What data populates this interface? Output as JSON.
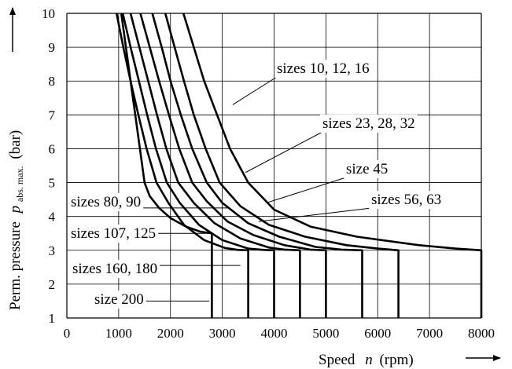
{
  "chart_data": {
    "type": "line",
    "xlabel": {
      "prefix": "Speed",
      "symbol": "n",
      "unit": "(rpm)"
    },
    "ylabel": {
      "prefix": "Perm. pressure",
      "symbol": "p",
      "subscript": "abs. max.",
      "unit": "(bar)"
    },
    "xlim": [
      0,
      8000
    ],
    "ylim": [
      1,
      10
    ],
    "x_ticks": [
      0,
      1000,
      2000,
      3000,
      4000,
      5000,
      6000,
      7000,
      8000
    ],
    "y_ticks": [
      1,
      2,
      3,
      4,
      5,
      6,
      7,
      8,
      9,
      10
    ],
    "grid": true,
    "series": [
      {
        "name": "sizes 10, 12, 16",
        "points": [
          [
            2250,
            10
          ],
          [
            2450,
            9
          ],
          [
            2650,
            8
          ],
          [
            2900,
            7
          ],
          [
            3150,
            6
          ],
          [
            3500,
            5
          ],
          [
            4000,
            4.2
          ],
          [
            4700,
            3.7
          ],
          [
            5600,
            3.4
          ],
          [
            6800,
            3.15
          ],
          [
            7500,
            3.05
          ],
          [
            8000,
            3
          ],
          [
            8000,
            1
          ]
        ]
      },
      {
        "name": "sizes 23, 28, 32",
        "points": [
          [
            1900,
            10
          ],
          [
            2080,
            9
          ],
          [
            2260,
            8
          ],
          [
            2450,
            7
          ],
          [
            2680,
            6
          ],
          [
            2950,
            5
          ],
          [
            3350,
            4.3
          ],
          [
            3900,
            3.75
          ],
          [
            4600,
            3.4
          ],
          [
            5400,
            3.15
          ],
          [
            6000,
            3.05
          ],
          [
            6400,
            3
          ],
          [
            6400,
            1
          ]
        ]
      },
      {
        "name": "size 45",
        "points": [
          [
            1650,
            10
          ],
          [
            1830,
            9
          ],
          [
            2000,
            8
          ],
          [
            2200,
            7
          ],
          [
            2420,
            6
          ],
          [
            2700,
            5
          ],
          [
            3000,
            4.4
          ],
          [
            3500,
            3.8
          ],
          [
            4100,
            3.4
          ],
          [
            4800,
            3.1
          ],
          [
            5300,
            3.02
          ],
          [
            5700,
            3
          ],
          [
            5700,
            1
          ]
        ]
      },
      {
        "name": "sizes 56, 63",
        "points": [
          [
            1420,
            10
          ],
          [
            1600,
            9
          ],
          [
            1780,
            8
          ],
          [
            1970,
            7
          ],
          [
            2170,
            6
          ],
          [
            2420,
            5
          ],
          [
            2700,
            4.45
          ],
          [
            3100,
            3.85
          ],
          [
            3600,
            3.45
          ],
          [
            4200,
            3.15
          ],
          [
            4700,
            3.02
          ],
          [
            5000,
            3
          ],
          [
            5000,
            1
          ]
        ]
      },
      {
        "name": "sizes 80, 90",
        "points": [
          [
            1230,
            10
          ],
          [
            1400,
            9
          ],
          [
            1570,
            8
          ],
          [
            1740,
            7
          ],
          [
            1920,
            6
          ],
          [
            2150,
            5
          ],
          [
            2450,
            4.4
          ],
          [
            2850,
            3.8
          ],
          [
            3350,
            3.35
          ],
          [
            3900,
            3.08
          ],
          [
            4200,
            3.02
          ],
          [
            4500,
            3
          ],
          [
            4500,
            1
          ]
        ]
      },
      {
        "name": "sizes 107, 125",
        "points": [
          [
            1080,
            10
          ],
          [
            1230,
            9
          ],
          [
            1390,
            8
          ],
          [
            1550,
            7
          ],
          [
            1720,
            6
          ],
          [
            1930,
            5
          ],
          [
            2180,
            4.4
          ],
          [
            2550,
            3.75
          ],
          [
            3000,
            3.3
          ],
          [
            3500,
            3.05
          ],
          [
            3800,
            3.01
          ],
          [
            4000,
            3
          ],
          [
            4000,
            1
          ]
        ]
      },
      {
        "name": "sizes 160, 180",
        "points": [
          [
            960,
            10
          ],
          [
            1090,
            9
          ],
          [
            1230,
            8
          ],
          [
            1380,
            7
          ],
          [
            1540,
            6
          ],
          [
            1730,
            5
          ],
          [
            1960,
            4.4
          ],
          [
            2260,
            3.75
          ],
          [
            2650,
            3.3
          ],
          [
            3050,
            3.07
          ],
          [
            3300,
            3.01
          ],
          [
            3500,
            3
          ],
          [
            3500,
            1
          ]
        ]
      },
      {
        "name": "size 200",
        "points": [
          [
            1050,
            10
          ],
          [
            1140,
            9
          ],
          [
            1230,
            8
          ],
          [
            1320,
            7
          ],
          [
            1410,
            6
          ],
          [
            1500,
            5
          ],
          [
            1600,
            4.6
          ],
          [
            1780,
            4.25
          ],
          [
            2000,
            3.95
          ],
          [
            2300,
            3.7
          ],
          [
            2580,
            3.55
          ],
          [
            2800,
            3.5
          ],
          [
            2800,
            1
          ]
        ]
      }
    ],
    "annotations": [
      {
        "text": "sizes 10, 12, 16",
        "points_to": [
          3200,
          7.3
        ]
      },
      {
        "text": "sizes 23, 28, 32",
        "points_to": [
          3450,
          5.3
        ]
      },
      {
        "text": "size 45",
        "points_to": [
          3850,
          4.4
        ]
      },
      {
        "text": "sizes 56, 63",
        "points_to": [
          3700,
          3.85
        ]
      },
      {
        "text": "sizes 80, 90",
        "points_to": [
          3100,
          4.25
        ]
      },
      {
        "text": "sizes 107, 125",
        "points_to": [
          2800,
          3.5
        ]
      },
      {
        "text": "sizes 160, 180",
        "points_to": [
          3350,
          2.55
        ]
      },
      {
        "text": "size 200",
        "points_to": [
          2750,
          1.5
        ]
      }
    ]
  }
}
